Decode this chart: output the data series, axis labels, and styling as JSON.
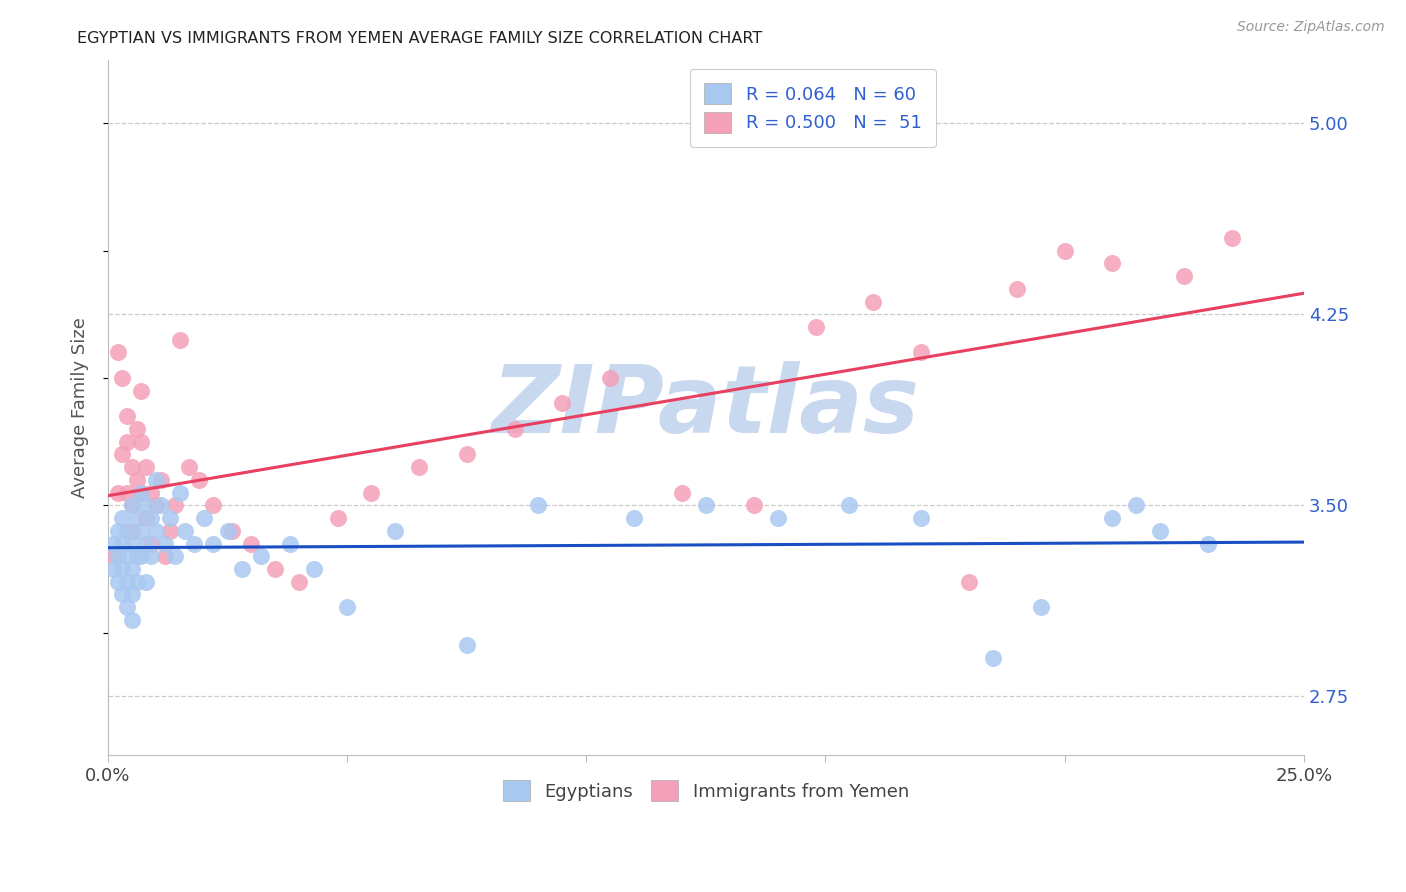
{
  "title": "EGYPTIAN VS IMMIGRANTS FROM YEMEN AVERAGE FAMILY SIZE CORRELATION CHART",
  "source": "Source: ZipAtlas.com",
  "ylabel": "Average Family Size",
  "right_yticks": [
    2.75,
    3.5,
    4.25,
    5.0
  ],
  "xlim": [
    0.0,
    0.25
  ],
  "ylim": [
    2.52,
    5.25
  ],
  "blue_color": "#a8c8f0",
  "pink_color": "#f4a0b8",
  "blue_line_color": "#1a4fc4",
  "pink_line_color": "#e84060",
  "grid_color": "#cccccc",
  "title_color": "#222222",
  "source_color": "#999999",
  "right_tick_color": "#3060d0",
  "legend_text_color": "#3060d0",
  "watermark_text": "ZIPatlas",
  "watermark_color": "#c8d8ee",
  "blue_x": [
    0.001,
    0.001,
    0.002,
    0.002,
    0.002,
    0.003,
    0.003,
    0.003,
    0.003,
    0.004,
    0.004,
    0.004,
    0.004,
    0.005,
    0.005,
    0.005,
    0.005,
    0.005,
    0.006,
    0.006,
    0.006,
    0.007,
    0.007,
    0.007,
    0.008,
    0.008,
    0.008,
    0.009,
    0.009,
    0.01,
    0.01,
    0.011,
    0.012,
    0.013,
    0.014,
    0.015,
    0.016,
    0.018,
    0.02,
    0.022,
    0.025,
    0.028,
    0.032,
    0.038,
    0.043,
    0.05,
    0.06,
    0.075,
    0.09,
    0.11,
    0.125,
    0.14,
    0.155,
    0.17,
    0.185,
    0.195,
    0.21,
    0.215,
    0.22,
    0.23
  ],
  "blue_y": [
    3.35,
    3.25,
    3.4,
    3.2,
    3.3,
    3.45,
    3.35,
    3.25,
    3.15,
    3.4,
    3.3,
    3.2,
    3.1,
    3.5,
    3.35,
    3.25,
    3.15,
    3.05,
    3.45,
    3.3,
    3.2,
    3.55,
    3.4,
    3.3,
    3.5,
    3.35,
    3.2,
    3.45,
    3.3,
    3.6,
    3.4,
    3.5,
    3.35,
    3.45,
    3.3,
    3.55,
    3.4,
    3.35,
    3.45,
    3.35,
    3.4,
    3.25,
    3.3,
    3.35,
    3.25,
    3.1,
    3.4,
    2.95,
    3.5,
    3.45,
    3.5,
    3.45,
    3.5,
    3.45,
    2.9,
    3.1,
    3.45,
    3.5,
    3.4,
    3.35
  ],
  "pink_x": [
    0.001,
    0.002,
    0.002,
    0.003,
    0.003,
    0.004,
    0.004,
    0.004,
    0.005,
    0.005,
    0.005,
    0.006,
    0.006,
    0.007,
    0.007,
    0.007,
    0.008,
    0.008,
    0.009,
    0.009,
    0.01,
    0.011,
    0.012,
    0.013,
    0.014,
    0.015,
    0.017,
    0.019,
    0.022,
    0.026,
    0.03,
    0.035,
    0.04,
    0.048,
    0.055,
    0.065,
    0.075,
    0.085,
    0.095,
    0.105,
    0.12,
    0.135,
    0.148,
    0.16,
    0.17,
    0.18,
    0.19,
    0.2,
    0.21,
    0.225,
    0.235
  ],
  "pink_y": [
    3.3,
    3.55,
    4.1,
    3.7,
    4.0,
    3.85,
    3.75,
    3.55,
    3.5,
    3.65,
    3.4,
    3.8,
    3.6,
    3.95,
    3.75,
    3.55,
    3.65,
    3.45,
    3.55,
    3.35,
    3.5,
    3.6,
    3.3,
    3.4,
    3.5,
    4.15,
    3.65,
    3.6,
    3.5,
    3.4,
    3.35,
    3.25,
    3.2,
    3.45,
    3.55,
    3.65,
    3.7,
    3.8,
    3.9,
    4.0,
    3.55,
    3.5,
    4.2,
    4.3,
    4.1,
    3.2,
    4.35,
    4.5,
    4.45,
    4.4,
    4.55
  ]
}
